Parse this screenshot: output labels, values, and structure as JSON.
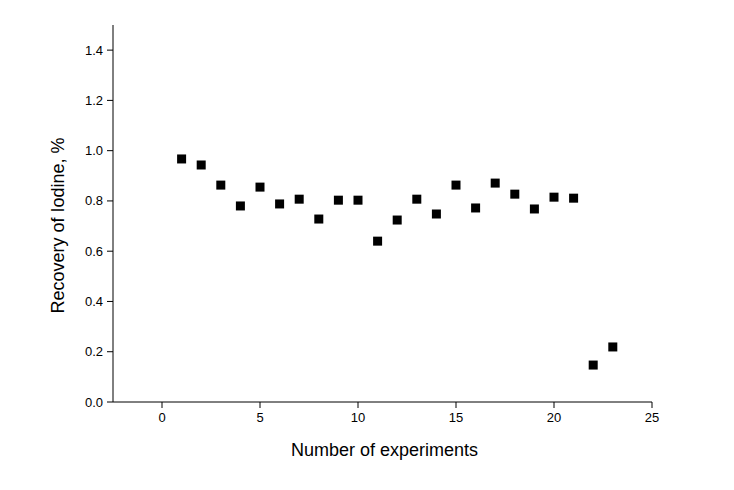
{
  "chart_data": {
    "type": "scatter",
    "x_label": "Number of experiments",
    "y_label": "Recovery of Iodine, %",
    "x": [
      1,
      2,
      3,
      4,
      5,
      6,
      7,
      8,
      9,
      10,
      11,
      12,
      13,
      14,
      15,
      16,
      17,
      18,
      19,
      20,
      21,
      22,
      23
    ],
    "values": [
      0.967,
      0.943,
      0.863,
      0.78,
      0.855,
      0.788,
      0.807,
      0.728,
      0.803,
      0.803,
      0.64,
      0.724,
      0.807,
      0.748,
      0.863,
      0.772,
      0.871,
      0.827,
      0.768,
      0.815,
      0.811,
      0.147,
      0.219
    ],
    "color": "#000000",
    "marker": "square",
    "xlim": [
      -2.5,
      25
    ],
    "xticks": [
      0,
      5,
      10,
      15,
      20,
      25
    ],
    "ylim": [
      0,
      1.5
    ],
    "yticks": [
      {
        "value": 0,
        "label": "0.0"
      },
      0.2,
      0.4,
      0.6,
      0.8,
      {
        "value": 1,
        "label": "1.0"
      },
      1.2,
      1.4
    ],
    "grid": false
  }
}
